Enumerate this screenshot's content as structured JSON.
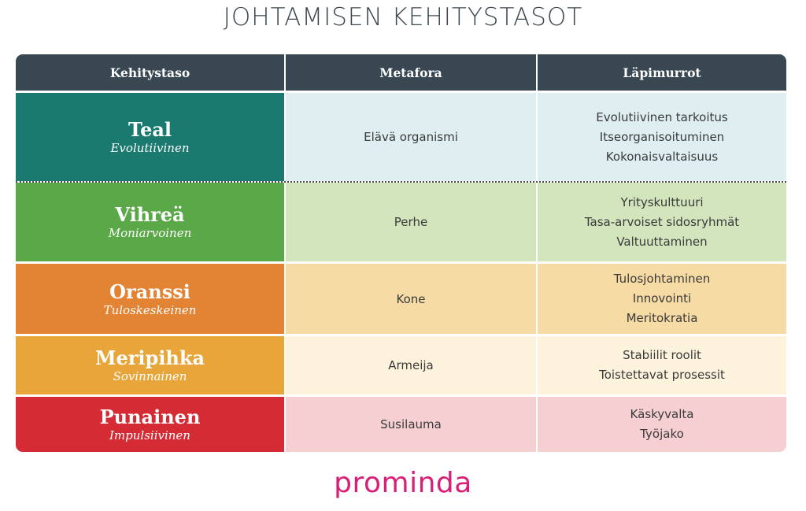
{
  "title": "JOHTAMISEN KEHITYSTASOT",
  "table": {
    "headers": [
      "Kehitystaso",
      "Metafora",
      "Läpimurrot"
    ],
    "rows": [
      {
        "name": "Teal",
        "subtitle": "Evolutiivinen",
        "metaphor": "Elävä organismi",
        "breakthroughs": [
          "Evolutiivinen tarkoitus",
          "Itseorganisoituminen",
          "Kokonaisvaltaisuus"
        ],
        "level_color": "#1a7a70",
        "meta_bg": "#dfeff1",
        "break_bg": "#dfeff1"
      },
      {
        "name": "Vihreä",
        "subtitle": "Moniarvoinen",
        "metaphor": "Perhe",
        "breakthroughs": [
          "Yrityskulttuuri",
          "Tasa-arvoiset sidosryhmät",
          "Valtuuttaminen"
        ],
        "level_color": "#5aa847",
        "meta_bg": "#d3e5bd",
        "break_bg": "#d3e5bd"
      },
      {
        "name": "Oranssi",
        "subtitle": "Tuloskeskeinen",
        "metaphor": "Kone",
        "breakthroughs": [
          "Tulosjohtaminen",
          "Innovointi",
          "Meritokratia"
        ],
        "level_color": "#e38434",
        "meta_bg": "#f7dba5",
        "break_bg": "#f7dba5"
      },
      {
        "name": "Meripihka",
        "subtitle": "Sovinnainen",
        "metaphor": "Armeija",
        "breakthroughs": [
          "Stabiilit roolit",
          "Toistettavat prosessit"
        ],
        "level_color": "#e7a53a",
        "meta_bg": "#fdf3dc",
        "break_bg": "#fdf3dc"
      },
      {
        "name": "Punainen",
        "subtitle": "Impulsiivinen",
        "metaphor": "Susilauma",
        "breakthroughs": [
          "Käskyvalta",
          "Työjako"
        ],
        "level_color": "#d52b35",
        "meta_bg": "#f6cfd3",
        "break_bg": "#f6cfd3"
      }
    ]
  },
  "logo": "prominda",
  "colors": {
    "header_bg": "#384752",
    "title_text": "#3d4750",
    "logo": "#d81e77"
  }
}
